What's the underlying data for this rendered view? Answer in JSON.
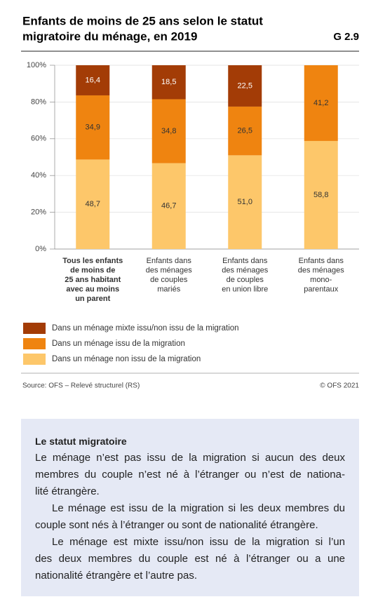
{
  "chart_data": {
    "type": "stacked_bar",
    "title": [
      "Enfants de moins de 25 ans selon le statut",
      "migratoire du ménage, en 2019"
    ],
    "figure_id": "G 2.9",
    "categories": [
      [
        "Tous les enfants",
        "de moins de",
        "25 ans habitant",
        "avec au moins",
        "un parent"
      ],
      [
        "Enfants dans",
        "des ménages",
        "de couples",
        "mariés"
      ],
      [
        "Enfants dans",
        "des ménages",
        "de couples",
        "en union libre"
      ],
      [
        "Enfants dans",
        "des ménages",
        "mono-",
        "parentaux"
      ]
    ],
    "series": [
      {
        "name": "Dans un ménage mixte issu/non issu de la migration",
        "color": "#a33c06",
        "values": [
          16.4,
          18.5,
          22.5,
          null
        ],
        "value_labels": [
          "16,4",
          "18,5",
          "22,5",
          null
        ]
      },
      {
        "name": "Dans un ménage issu de la migration",
        "color": "#ef8410",
        "values": [
          34.9,
          34.8,
          26.5,
          41.2
        ],
        "value_labels": [
          "34,9",
          "34,8",
          "26,5",
          "41,2"
        ]
      },
      {
        "name": "Dans un ménage non issu de la migration",
        "color": "#fdc76a",
        "values": [
          48.7,
          46.7,
          51.0,
          58.8
        ],
        "value_labels": [
          "48,7",
          "46,7",
          "51,0",
          "58,8"
        ]
      }
    ],
    "ylim": [
      0,
      100
    ],
    "yticks": [
      {
        "value": 0,
        "label": "0%"
      },
      {
        "value": 20,
        "label": "20%"
      },
      {
        "value": 40,
        "label": "40%"
      },
      {
        "value": 60,
        "label": "60%"
      },
      {
        "value": 80,
        "label": "80%"
      },
      {
        "value": 100,
        "label": "100%"
      }
    ],
    "grid": true,
    "source": "Source: OFS – Relevé structurel (RS)",
    "copyright": "© OFS 2021"
  },
  "info_box": {
    "title": "Le statut migratoire",
    "paragraphs": [
      [
        "Le ménage n’est pas issu de la migration si aucun des deux",
        "membres du couple n’est né à l’étranger ou n’est de nationa-",
        "lité étrangère."
      ],
      [
        "Le ménage est issu de la migration si les deux membres du",
        "couple sont nés à l’étranger ou sont de nationalité étrangère."
      ],
      [
        "Le ménage est mixte issu/non issu de la migration si l’un",
        "des deux membres du couple est né à l’étranger ou a une",
        "nationalité étrangère et l’autre pas."
      ]
    ]
  }
}
